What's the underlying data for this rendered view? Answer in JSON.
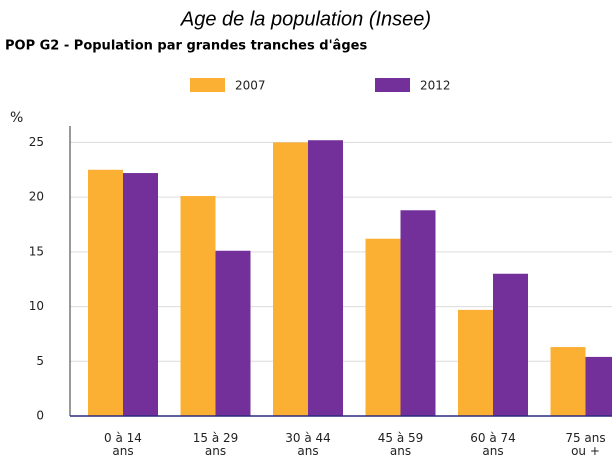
{
  "chart_data": {
    "type": "bar",
    "title": "Age de la population (Insee)",
    "subtitle": "POP G2 - Population par grandes tranches d'âges",
    "y_label": "%",
    "categories": [
      [
        "0 à 14",
        "ans"
      ],
      [
        "15 à 29",
        "ans"
      ],
      [
        "30 à 44",
        "ans"
      ],
      [
        "45 à 59",
        "ans"
      ],
      [
        "60 à 74",
        "ans"
      ],
      [
        "75 ans",
        "ou +"
      ]
    ],
    "series": [
      {
        "name": "2007",
        "color": "#fbb034",
        "values": [
          22.5,
          20.1,
          25.0,
          16.2,
          9.7,
          6.3
        ]
      },
      {
        "name": "2012",
        "color": "#73309a",
        "values": [
          22.2,
          15.1,
          25.2,
          18.8,
          13.0,
          5.4
        ]
      }
    ],
    "ylim": [
      0,
      26.5
    ],
    "yticks": [
      0,
      5,
      10,
      15,
      20,
      25
    ],
    "grid": true
  }
}
